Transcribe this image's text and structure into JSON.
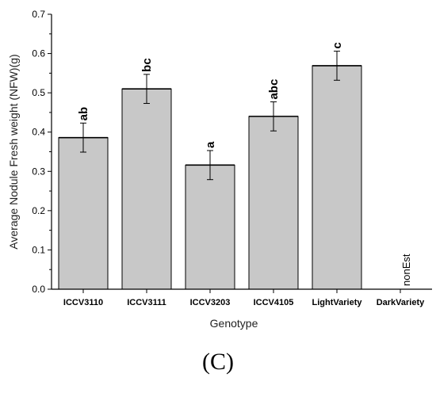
{
  "chart_data": {
    "type": "bar",
    "categories": [
      "ICCV3110",
      "ICCV3111",
      "ICCV3203",
      "ICCV4105",
      "LightVariety",
      "DarkVariety"
    ],
    "values": [
      0.386,
      0.51,
      0.316,
      0.44,
      0.569,
      null
    ],
    "errors": [
      0.037,
      0.037,
      0.037,
      0.037,
      0.037,
      null
    ],
    "significance": [
      "ab",
      "bc",
      "a",
      "abc",
      "c",
      ""
    ],
    "missing_label": "nonEst",
    "xlabel": "Genotype",
    "ylabel": "Average Nodule Fresh weight (NFW)(g)",
    "ylim": [
      0.0,
      0.7
    ],
    "yticks": [
      "0.0",
      "0.1",
      "0.2",
      "0.3",
      "0.4",
      "0.5",
      "0.6",
      "0.7"
    ],
    "bar_color": "#c8c8c8",
    "grid": false,
    "legend": "none"
  },
  "panel_label": "(C)"
}
